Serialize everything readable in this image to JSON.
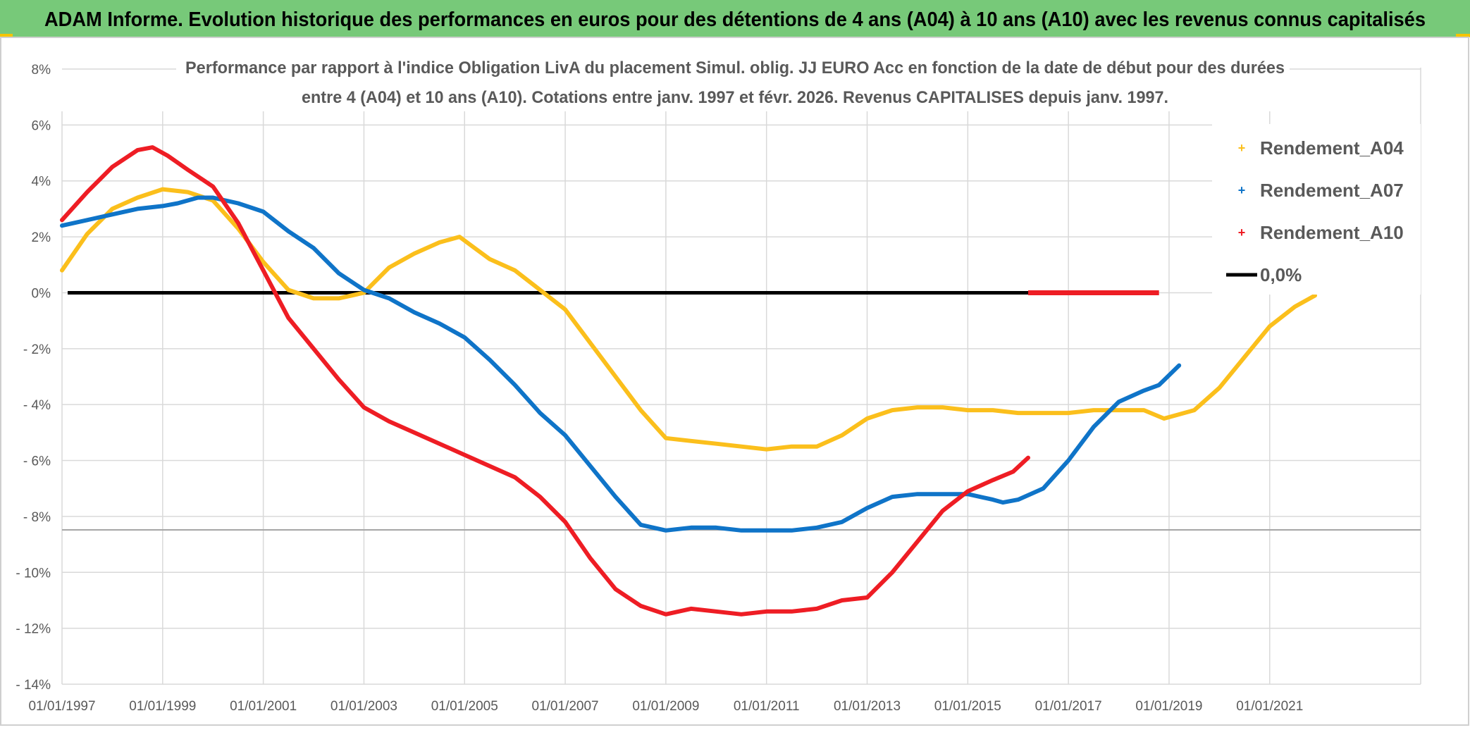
{
  "header": {
    "title": "ADAM Informe. Evolution historique des performances en euros pour des détentions de 4 ans (A04) à 10 ans (A10) avec les revenus connus capitalisés"
  },
  "colors": {
    "header_bg": "#77c979",
    "header_accent": "#f5c400",
    "a04": "#fbbf1c",
    "a07": "#0f74c8",
    "a10": "#ee1d24",
    "zero": "#000000",
    "grid": "#d9d9d9"
  },
  "chart_data": {
    "type": "line",
    "title_line1": "Performance par rapport à l'indice Obligation LivA  du placement Simul. oblig. JJ EURO Acc en fonction de la date de début pour des durées",
    "title_line2": "entre 4 (A04) et 10 ans (A10). Cotations entre janv. 1997 et févr. 2026. Revenus CAPITALISES depuis janv. 1997.",
    "xlabel": "",
    "ylabel": "",
    "xlim": [
      1997,
      2024
    ],
    "ylim": [
      -14,
      8
    ],
    "x_ticks": [
      {
        "value": 1997,
        "label": "01/01/1997"
      },
      {
        "value": 1999,
        "label": "01/01/1999"
      },
      {
        "value": 2001,
        "label": "01/01/2001"
      },
      {
        "value": 2003,
        "label": "01/01/2003"
      },
      {
        "value": 2005,
        "label": "01/01/2005"
      },
      {
        "value": 2007,
        "label": "01/01/2007"
      },
      {
        "value": 2009,
        "label": "01/01/2009"
      },
      {
        "value": 2011,
        "label": "01/01/2011"
      },
      {
        "value": 2013,
        "label": "01/01/2013"
      },
      {
        "value": 2015,
        "label": "01/01/2015"
      },
      {
        "value": 2017,
        "label": "01/01/2017"
      },
      {
        "value": 2019,
        "label": "01/01/2019"
      },
      {
        "value": 2021,
        "label": "01/01/2021"
      }
    ],
    "y_ticks": [
      {
        "value": 8,
        "label": "8%"
      },
      {
        "value": 6,
        "label": "6%"
      },
      {
        "value": 4,
        "label": "4%"
      },
      {
        "value": 2,
        "label": "2%"
      },
      {
        "value": 0,
        "label": "0%"
      },
      {
        "value": -2,
        "label": "- 2%"
      },
      {
        "value": -4,
        "label": "- 4%"
      },
      {
        "value": -6,
        "label": "- 6%"
      },
      {
        "value": -8,
        "label": "- 8%"
      },
      {
        "value": -10,
        "label": "- 10%"
      },
      {
        "value": -12,
        "label": "- 12%"
      },
      {
        "value": -14,
        "label": "- 14%"
      }
    ],
    "grid": true,
    "legend_position": "top-right",
    "series": [
      {
        "name": "Rendement_A04",
        "color": "#fbbf1c",
        "x": [
          1997,
          1997.5,
          1998,
          1998.5,
          1999,
          1999.5,
          2000,
          2000.5,
          2001,
          2001.5,
          2002,
          2002.5,
          2003,
          2003.5,
          2004,
          2004.5,
          2004.9,
          2005.2,
          2005.5,
          2006,
          2006.5,
          2007,
          2007.5,
          2008,
          2008.5,
          2009,
          2009.5,
          2010,
          2010.5,
          2011,
          2011.5,
          2012,
          2012.5,
          2013,
          2013.5,
          2014,
          2014.5,
          2015,
          2015.5,
          2016,
          2016.5,
          2017,
          2017.5,
          2018,
          2018.5,
          2018.9,
          2019.5,
          2020,
          2020.5,
          2021,
          2021.5,
          2021.9
        ],
        "y": [
          0.8,
          2.1,
          3.0,
          3.4,
          3.7,
          3.6,
          3.3,
          2.3,
          1.1,
          0.1,
          -0.2,
          -0.2,
          0.0,
          0.9,
          1.4,
          1.8,
          2.0,
          1.6,
          1.2,
          0.8,
          0.1,
          -0.6,
          -1.8,
          -3.0,
          -4.2,
          -5.2,
          -5.3,
          -5.4,
          -5.5,
          -5.6,
          -5.5,
          -5.5,
          -5.1,
          -4.5,
          -4.2,
          -4.1,
          -4.1,
          -4.2,
          -4.2,
          -4.3,
          -4.3,
          -4.3,
          -4.2,
          -4.2,
          -4.2,
          -4.5,
          -4.2,
          -3.4,
          -2.3,
          -1.2,
          -0.5,
          -0.1
        ]
      },
      {
        "name": "Rendement_A07",
        "color": "#0f74c8",
        "x": [
          1997,
          1997.5,
          1998,
          1998.5,
          1999,
          1999.3,
          1999.7,
          2000,
          2000.5,
          2001,
          2001.5,
          2002,
          2002.5,
          2003,
          2003.5,
          2004,
          2004.5,
          2005,
          2005.5,
          2006,
          2006.5,
          2007,
          2007.5,
          2008,
          2008.5,
          2009,
          2009.5,
          2010,
          2010.5,
          2011,
          2011.5,
          2012,
          2012.5,
          2013,
          2013.5,
          2014,
          2014.5,
          2015,
          2015.5,
          2015.7,
          2016,
          2016.5,
          2017,
          2017.5,
          2018,
          2018.5,
          2018.8,
          2019.2
        ],
        "y": [
          2.4,
          2.6,
          2.8,
          3.0,
          3.1,
          3.2,
          3.4,
          3.4,
          3.2,
          2.9,
          2.2,
          1.6,
          0.7,
          0.1,
          -0.2,
          -0.7,
          -1.1,
          -1.6,
          -2.4,
          -3.3,
          -4.3,
          -5.1,
          -6.2,
          -7.3,
          -8.3,
          -8.5,
          -8.4,
          -8.4,
          -8.5,
          -8.5,
          -8.5,
          -8.4,
          -8.2,
          -7.7,
          -7.3,
          -7.2,
          -7.2,
          -7.2,
          -7.4,
          -7.5,
          -7.4,
          -7.0,
          -6.0,
          -4.8,
          -3.9,
          -3.5,
          -3.3,
          -2.6
        ]
      },
      {
        "name": "Rendement_A10",
        "color": "#ee1d24",
        "x": [
          1997,
          1997.5,
          1998,
          1998.5,
          1998.8,
          1999.1,
          1999.5,
          2000,
          2000.5,
          2001,
          2001.5,
          2002,
          2002.5,
          2003,
          2003.5,
          2004,
          2004.5,
          2005,
          2005.5,
          2006,
          2006.5,
          2007,
          2007.5,
          2008,
          2008.5,
          2009,
          2009.5,
          2010,
          2010.5,
          2011,
          2011.5,
          2012,
          2012.5,
          2013,
          2013.5,
          2014,
          2014.5,
          2015,
          2015.5,
          2015.9,
          2016.2
        ],
        "y": [
          2.6,
          3.6,
          4.5,
          5.1,
          5.2,
          4.9,
          4.4,
          3.8,
          2.5,
          0.8,
          -0.9,
          -2.0,
          -3.1,
          -4.1,
          -4.6,
          -5.0,
          -5.4,
          -5.8,
          -6.2,
          -6.6,
          -7.3,
          -8.2,
          -9.5,
          -10.6,
          -11.2,
          -11.5,
          -11.3,
          -11.4,
          -11.5,
          -11.4,
          -11.4,
          -11.3,
          -11.0,
          -10.9,
          -10.0,
          -8.9,
          -7.8,
          -7.1,
          -6.7,
          -6.4,
          -5.9
        ]
      }
    ],
    "reference_line": {
      "name": "0,0%",
      "value": 0,
      "color": "#000000"
    },
    "legend": [
      {
        "label": "Rendement_A04",
        "color": "#fbbf1c",
        "marker": "+"
      },
      {
        "label": "Rendement_A07",
        "color": "#0f74c8",
        "marker": "+"
      },
      {
        "label": "Rendement_A10",
        "color": "#ee1d24",
        "marker": "+"
      },
      {
        "label": "0,0%",
        "color": "#000000",
        "marker": "line"
      }
    ]
  }
}
